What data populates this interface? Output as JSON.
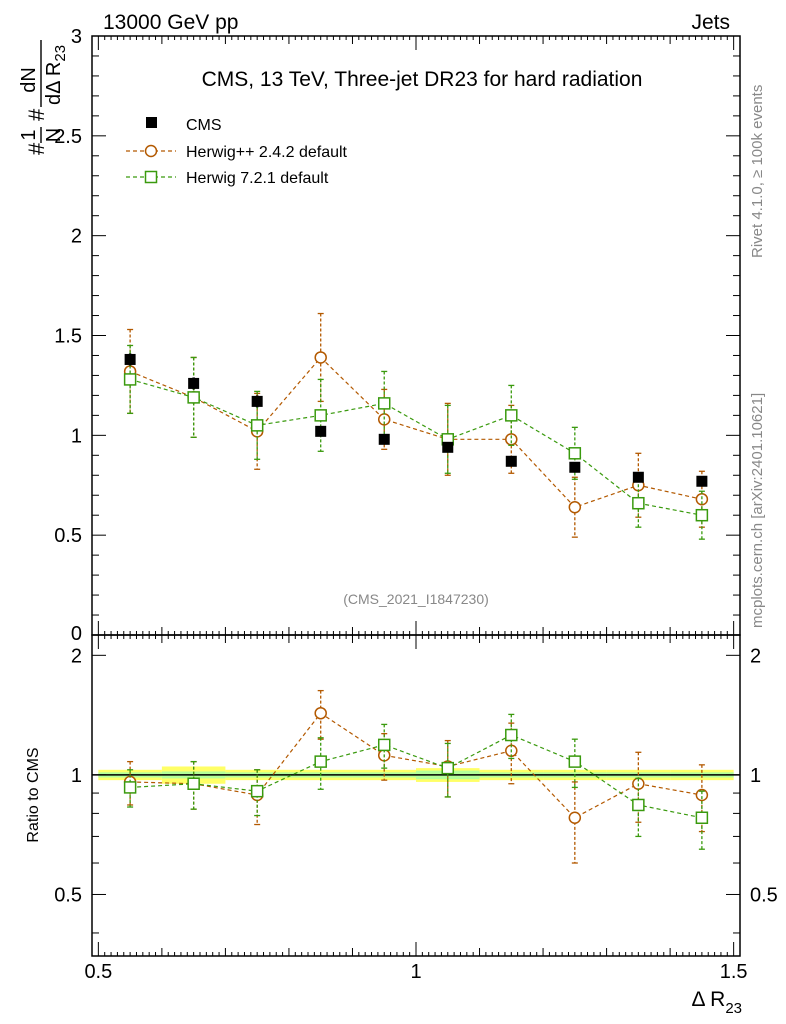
{
  "header": {
    "left": "13000 GeV pp",
    "right": "Jets"
  },
  "side_text": {
    "rivet": "Rivet 4.1.0, ≥ 100k events",
    "mcplots": "mcplots.cern.ch [arXiv:2401.10621]"
  },
  "watermark": "(CMS_2021_I1847230)",
  "colors": {
    "cms": "#000000",
    "herwigpp": "#b35900",
    "herwig7": "#3a9a0e",
    "band_yellow": "#ffff66",
    "band_green": "#b3ff99"
  },
  "chart_data": {
    "type": "scatter",
    "title": "CMS, 13 TeV, Three-jet DR23 for hard radiation",
    "xlabel_main": "Δ R",
    "xlabel_sub": "23",
    "ylabel": "#frac{1}{N} #frac{dN}{dΔ R_{23}}",
    "ylabel_parts": {
      "frac1_num": "1",
      "frac1_den": "N",
      "frac2_num": "dN",
      "frac2_den": "dΔ R",
      "frac2_den_sub": "23",
      "hash1": "#",
      "hash2": "#"
    },
    "ratio_ylabel": "Ratio to CMS",
    "xlim": [
      0.49,
      1.51
    ],
    "ylim": [
      0,
      3
    ],
    "ratio_ylim": [
      0.35,
      2.25
    ],
    "x_ticks": [
      "0.5",
      "1",
      "1.5"
    ],
    "y_ticks": [
      "0.5",
      "1",
      "1.5",
      "2",
      "2.5",
      "3"
    ],
    "y_tick_zero": "0",
    "ratio_y_ticks": [
      "0.5",
      "1",
      "2"
    ],
    "bin_edges": [
      0.5,
      0.6,
      0.7,
      0.8,
      0.9,
      1.0,
      1.1,
      1.2,
      1.3,
      1.4,
      1.5
    ],
    "x": [
      0.55,
      0.65,
      0.75,
      0.85,
      0.95,
      1.05,
      1.15,
      1.25,
      1.35,
      1.45
    ],
    "series": [
      {
        "name": "CMS",
        "marker": "filled-square",
        "values": [
          1.38,
          1.26,
          1.17,
          1.02,
          0.98,
          0.94,
          0.87,
          0.84,
          0.79,
          0.77
        ],
        "errors": [
          0.03,
          0.03,
          0.03,
          0.02,
          0.02,
          0.02,
          0.02,
          0.02,
          0.02,
          0.02
        ],
        "ratio": [
          1,
          1,
          1,
          1,
          1,
          1,
          1,
          1,
          1,
          1
        ]
      },
      {
        "name": "Herwig++ 2.4.2 default",
        "marker": "open-circle",
        "values": [
          1.32,
          1.19,
          1.02,
          1.39,
          1.08,
          0.98,
          0.98,
          0.64,
          0.75,
          0.68
        ],
        "errors": [
          0.21,
          0.2,
          0.19,
          0.22,
          0.15,
          0.18,
          0.17,
          0.15,
          0.16,
          0.14
        ],
        "ratio": [
          0.96,
          0.95,
          0.89,
          1.43,
          1.12,
          1.05,
          1.15,
          0.78,
          0.95,
          0.89
        ],
        "ratio_errors": [
          0.12,
          0.13,
          0.14,
          0.2,
          0.15,
          0.17,
          0.2,
          0.18,
          0.19,
          0.17
        ]
      },
      {
        "name": "Herwig 7.2.1 default",
        "marker": "open-square",
        "values": [
          1.28,
          1.19,
          1.05,
          1.1,
          1.16,
          0.98,
          1.1,
          0.91,
          0.66,
          0.6
        ],
        "errors": [
          0.17,
          0.2,
          0.17,
          0.18,
          0.16,
          0.17,
          0.15,
          0.13,
          0.12,
          0.12
        ],
        "ratio": [
          0.93,
          0.95,
          0.91,
          1.08,
          1.19,
          1.04,
          1.26,
          1.08,
          0.84,
          0.78
        ],
        "ratio_errors": [
          0.1,
          0.13,
          0.12,
          0.16,
          0.15,
          0.16,
          0.16,
          0.15,
          0.14,
          0.13
        ]
      }
    ],
    "ratio_band": {
      "yellow": [
        0.03,
        0.05,
        0.03,
        0.03,
        0.03,
        0.04,
        0.03,
        0.03,
        0.03,
        0.03
      ],
      "green": [
        0.015,
        0.02,
        0.015,
        0.015,
        0.015,
        0.025,
        0.015,
        0.015,
        0.015,
        0.015
      ]
    },
    "legend_position": "top-left",
    "grid": false
  }
}
